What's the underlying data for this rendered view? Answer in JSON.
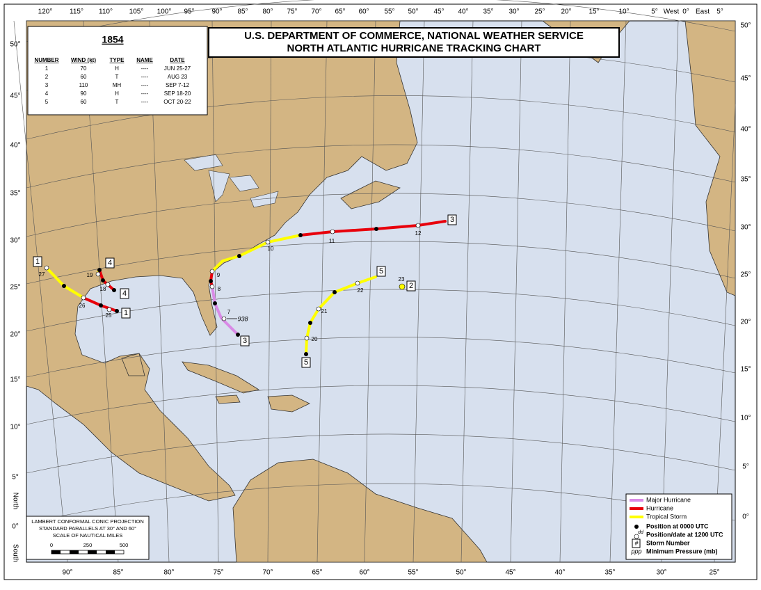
{
  "title": {
    "line1": "U.S. DEPARTMENT OF COMMERCE, NATIONAL WEATHER SERVICE",
    "line2": "NORTH ATLANTIC HURRICANE TRACKING CHART"
  },
  "table": {
    "year": "1854",
    "header": [
      "NUMBER",
      "WIND (kt)",
      "TYPE",
      "NAME",
      "DATE"
    ],
    "rows": [
      [
        "1",
        "70",
        "H",
        "----",
        "JUN 25-27"
      ],
      [
        "2",
        "60",
        "T",
        "----",
        "AUG 23"
      ],
      [
        "3",
        "110",
        "MH",
        "----",
        "SEP 7-12"
      ],
      [
        "4",
        "90",
        "H",
        "----",
        "SEP 18-20"
      ],
      [
        "5",
        "60",
        "T",
        "----",
        "OCT 20-22"
      ]
    ]
  },
  "top_labels": [
    "120°",
    "115°",
    "110°",
    "105°",
    "100°",
    "95°",
    "90°",
    "85°",
    "80°",
    "75°",
    "70°",
    "65°",
    "60°",
    "55°",
    "50°",
    "45°",
    "40°",
    "35°",
    "30°",
    "25°",
    "20°",
    "15°",
    "10°",
    "5°",
    "West",
    "0°",
    "East",
    "5°"
  ],
  "bottom_labels": [
    "90°",
    "85°",
    "80°",
    "75°",
    "70°",
    "65°",
    "60°",
    "55°",
    "50°",
    "45°",
    "40°",
    "35°",
    "30°",
    "25°"
  ],
  "left_labels": [
    "50°",
    "45°",
    "40°",
    "35°",
    "30°",
    "25°",
    "20°",
    "15°",
    "10°",
    "5°",
    "0°"
  ],
  "right_labels": [
    "50°",
    "45°",
    "40°",
    "35°",
    "30°",
    "25°",
    "20°",
    "15°",
    "10°",
    "5°",
    "0°"
  ],
  "side_labels": [
    "North",
    "South"
  ],
  "projection": {
    "lines": [
      "LAMBERT CONFORMAL CONIC PROJECTION",
      "STANDARD PARALLELS AT 30° AND 60°",
      "SCALE OF NAUTICAL MILES"
    ],
    "scale": [
      "0",
      "250",
      "500"
    ]
  },
  "legend": {
    "tracks": [
      {
        "label": "Major Hurricane",
        "color": "#d98ae6"
      },
      {
        "label": "Hurricane",
        "color": "#e8000b"
      },
      {
        "label": "Tropical Storm",
        "color": "#ffff00"
      }
    ],
    "symbols": [
      {
        "symbol": "",
        "label": "Position at 0000 UTC"
      },
      {
        "symbol": "dd",
        "label": "Position/date at 1200 UTC"
      },
      {
        "symbol": "#",
        "label": "Storm Number"
      },
      {
        "symbol": "ppp",
        "label": "Minimum Pressure (mb)"
      }
    ]
  },
  "storms": [
    {
      "number": "1",
      "dates": [
        "27",
        "26",
        "25"
      ]
    },
    {
      "number": "2",
      "dates": [
        "23"
      ]
    },
    {
      "number": "3",
      "dates": [
        "7",
        "8",
        "9",
        "10",
        "11",
        "12"
      ],
      "pressure": "938"
    },
    {
      "number": "4",
      "dates": [
        "19",
        "18"
      ]
    },
    {
      "number": "5",
      "dates": [
        "20",
        "21",
        "22"
      ]
    }
  ]
}
